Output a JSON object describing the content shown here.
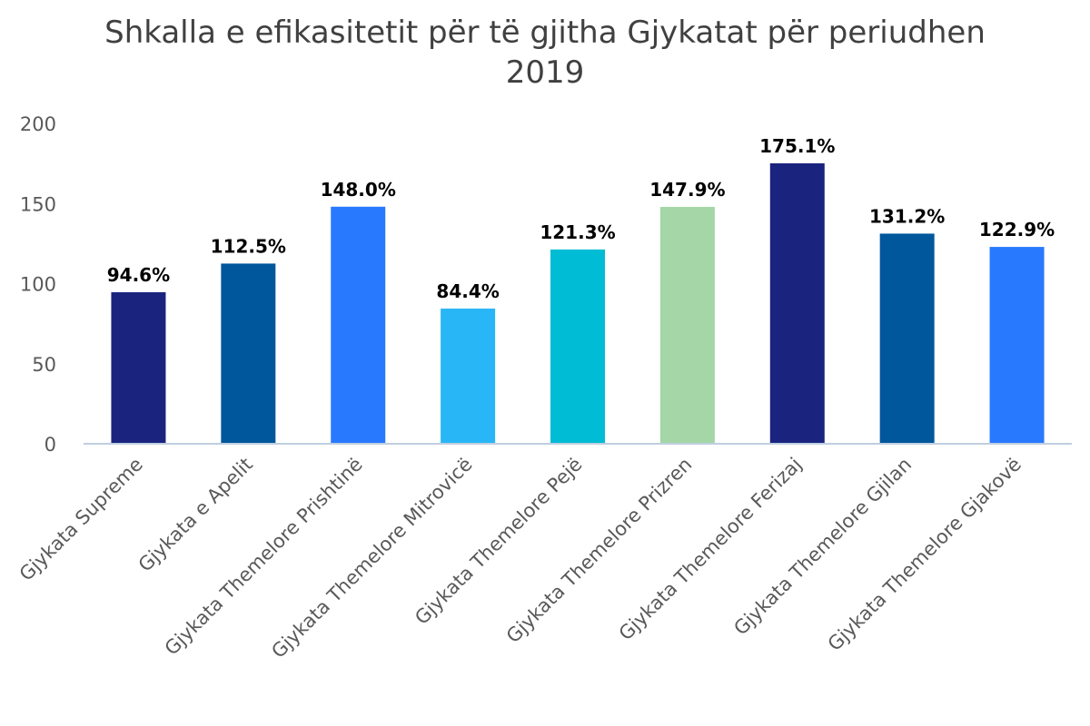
{
  "chart_data": {
    "type": "bar",
    "title": "Shkalla e efikasitetit për të gjitha Gjykatat për periudhen 2019",
    "title_lines": [
      "Shkalla e efikasitetit për të gjitha Gjykatat për periudhen",
      "2019"
    ],
    "xlabel": "",
    "ylabel": "",
    "ylim": [
      0,
      200
    ],
    "yticks": [
      0,
      50,
      100,
      150,
      200
    ],
    "grid": false,
    "legend": "none",
    "categories": [
      "Gjykata Supreme",
      "Gjykata e Apelit",
      "Gjykata Themelore Prishtinë",
      "Gjykata Themelore Mitrovicë",
      "Gjykata Themelore Pejë",
      "Gjykata Themelore Prizren",
      "Gjykata Themelore Ferizaj",
      "Gjykata Themelore Gjilan",
      "Gjykata Themelore Gjakovë"
    ],
    "values": [
      94.6,
      112.5,
      148.0,
      84.4,
      121.3,
      147.9,
      175.1,
      131.2,
      122.9
    ],
    "data_labels": [
      "94.6%",
      "112.5%",
      "148.0%",
      "84.4%",
      "121.3%",
      "147.9%",
      "175.1%",
      "131.2%",
      "122.9%"
    ],
    "colors": [
      "#1a237e",
      "#01579b",
      "#2979ff",
      "#29b6f6",
      "#00bcd4",
      "#a5d6a7",
      "#1a237e",
      "#01579b",
      "#2979ff"
    ],
    "axis_color": "#bfcfe0"
  }
}
